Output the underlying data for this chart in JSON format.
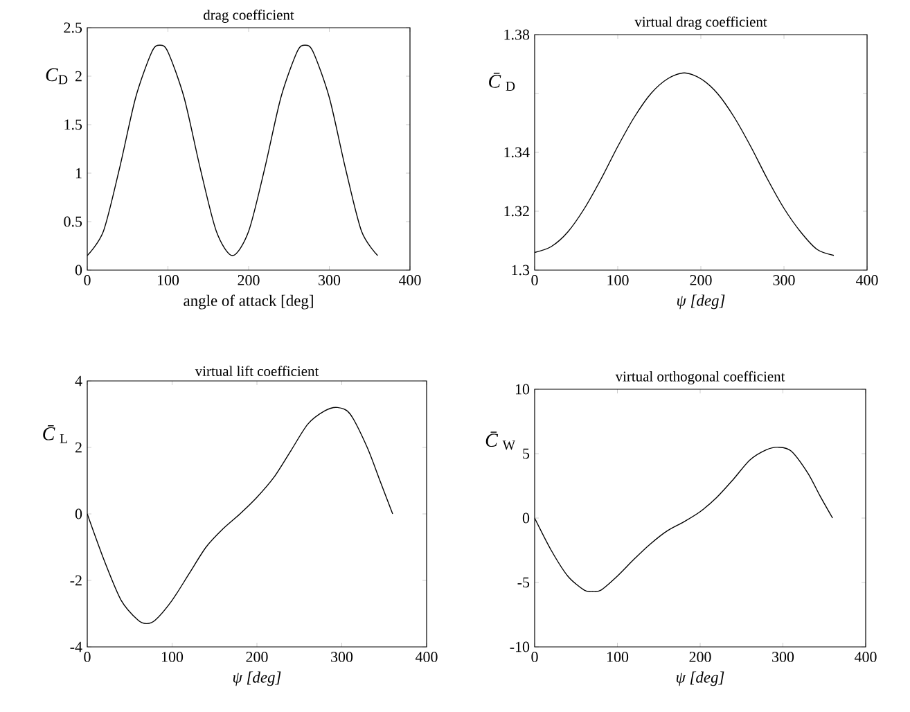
{
  "chart_data": [
    {
      "type": "line",
      "title": "drag coefficient",
      "xlabel": "angle of attack [deg]",
      "ylabel": "*C*$_{D}$",
      "color": "#000000",
      "x": [
        0,
        20,
        40,
        60,
        80,
        90,
        100,
        120,
        140,
        160,
        180,
        200,
        220,
        240,
        260,
        270,
        280,
        300,
        320,
        340,
        360
      ],
      "values": [
        0.15,
        0.4,
        1.05,
        1.78,
        2.25,
        2.32,
        2.25,
        1.78,
        1.05,
        0.4,
        0.15,
        0.4,
        1.05,
        1.78,
        2.25,
        2.32,
        2.25,
        1.78,
        1.05,
        0.4,
        0.15
      ],
      "xlim": [
        0,
        400
      ],
      "ylim": [
        0,
        2.5
      ],
      "xticks": [
        0,
        100,
        200,
        300,
        400
      ],
      "yticks": [
        0,
        0.5,
        1,
        1.5,
        2,
        2.5
      ]
    },
    {
      "type": "line",
      "title": "virtual drag coefficient",
      "xlabel": "*ψ [deg]*",
      "ylabel": "*C̄*$_{D}$",
      "color": "#000000",
      "x": [
        0,
        20,
        40,
        60,
        80,
        100,
        120,
        140,
        160,
        180,
        200,
        220,
        240,
        260,
        280,
        300,
        320,
        340,
        360
      ],
      "values": [
        1.306,
        1.308,
        1.313,
        1.321,
        1.331,
        1.342,
        1.352,
        1.36,
        1.365,
        1.367,
        1.365,
        1.36,
        1.352,
        1.342,
        1.331,
        1.321,
        1.313,
        1.307,
        1.305
      ],
      "xlim": [
        0,
        400
      ],
      "ylim": [
        1.3,
        1.38
      ],
      "xticks": [
        0,
        100,
        200,
        300,
        400
      ],
      "yticks": [
        1.3,
        1.32,
        1.34,
        {
          "value": 1.36,
          "label": null
        },
        1.38
      ]
    },
    {
      "type": "line",
      "title": "virtual lift coefficient",
      "xlabel": "*ψ [deg]*",
      "ylabel": "*C̄*$_{L}$",
      "color": "#000000",
      "x": [
        0,
        20,
        40,
        60,
        70,
        80,
        100,
        120,
        140,
        160,
        180,
        200,
        220,
        240,
        260,
        280,
        295,
        310,
        330,
        345,
        360
      ],
      "values": [
        0,
        -1.4,
        -2.6,
        -3.2,
        -3.3,
        -3.2,
        -2.6,
        -1.8,
        -1.0,
        -0.45,
        0,
        0.5,
        1.1,
        1.9,
        2.7,
        3.1,
        3.2,
        3.0,
        2.0,
        1.0,
        0
      ],
      "xlim": [
        0,
        400
      ],
      "ylim": [
        -4,
        4
      ],
      "xticks": [
        0,
        100,
        200,
        300,
        400
      ],
      "yticks": [
        -4,
        -2,
        0,
        2,
        4
      ]
    },
    {
      "type": "line",
      "title": "virtual orthogonal coefficient",
      "xlabel": "*ψ [deg]*",
      "ylabel": "*C̄*$_{W}$",
      "color": "#000000",
      "x": [
        0,
        20,
        40,
        60,
        70,
        80,
        100,
        120,
        140,
        160,
        180,
        200,
        220,
        240,
        260,
        280,
        295,
        310,
        330,
        345,
        360
      ],
      "values": [
        0,
        -2.5,
        -4.5,
        -5.6,
        -5.7,
        -5.6,
        -4.5,
        -3.2,
        -2.0,
        -1.0,
        -0.3,
        0.5,
        1.6,
        3.0,
        4.5,
        5.3,
        5.5,
        5.2,
        3.5,
        1.7,
        0
      ],
      "xlim": [
        0,
        400
      ],
      "ylim": [
        -10,
        10
      ],
      "xticks": [
        0,
        100,
        200,
        300,
        400
      ],
      "yticks": [
        -10,
        -5,
        0,
        5,
        10
      ]
    }
  ]
}
